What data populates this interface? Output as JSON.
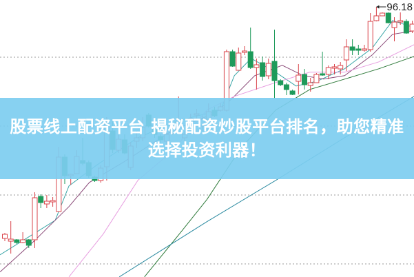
{
  "banner": {
    "title": "股票线上配资平台 揭秘配资炒股平台排名，助您精准选择投资利器！",
    "background": "#7dcdf0"
  },
  "chart_data": {
    "type": "candlestick",
    "grid": true,
    "high_label": "96.18",
    "colors": {
      "up": "#d9434a",
      "down": "#1e9a5a",
      "grid": "#999999"
    },
    "candle_format": [
      "open",
      "high",
      "low",
      "close"
    ],
    "candles": [
      [
        62.58,
        63.38,
        62.18,
        63.18
      ],
      [
        62.18,
        65.08,
        60.38,
        62.48
      ],
      [
        62.38,
        62.48,
        61.78,
        61.98
      ],
      [
        61.98,
        63.48,
        61.88,
        62.38
      ],
      [
        62.38,
        62.48,
        61.18,
        61.58
      ],
      [
        62.38,
        69.28,
        61.18,
        68.48
      ],
      [
        68.68,
        68.98,
        66.98,
        67.78
      ],
      [
        67.58,
        68.88,
        66.98,
        67.98
      ],
      [
        67.88,
        68.58,
        67.18,
        68.08
      ],
      [
        66.48,
        75.88,
        66.48,
        74.38
      ],
      [
        74.38,
        74.78,
        70.48,
        71.68
      ],
      [
        71.68,
        71.98,
        70.38,
        71.88
      ],
      [
        71.98,
        75.38,
        71.98,
        74.48
      ],
      [
        73.88,
        77.18,
        73.18,
        73.48
      ],
      [
        73.58,
        73.88,
        71.38,
        71.68
      ],
      [
        71.48,
        71.68,
        70.78,
        70.98
      ],
      [
        70.98,
        73.18,
        70.68,
        72.78
      ],
      [
        72.98,
        80.18,
        70.98,
        79.18
      ],
      [
        78.18,
        79.68,
        74.98,
        75.48
      ],
      [
        75.38,
        77.68,
        74.98,
        76.98
      ],
      [
        76.88,
        77.68,
        74.78,
        74.98
      ],
      [
        72.88,
        76.58,
        72.48,
        75.98
      ],
      [
        76.68,
        78.18,
        75.68,
        77.18
      ],
      [
        77.18,
        80.18,
        76.68,
        78.68
      ],
      [
        80.48,
        80.78,
        78.68,
        78.88
      ],
      [
        78.58,
        79.18,
        77.18,
        77.68
      ],
      [
        77.38,
        77.68,
        76.48,
        76.88
      ],
      [
        76.68,
        78.18,
        76.18,
        77.68
      ],
      [
        77.88,
        79.38,
        77.58,
        78.88
      ],
      [
        79.18,
        83.18,
        78.68,
        79.58
      ],
      [
        77.18,
        78.18,
        76.68,
        77.68
      ],
      [
        79.48,
        80.68,
        78.68,
        79.98
      ],
      [
        80.48,
        81.38,
        79.98,
        80.68
      ],
      [
        78.88,
        80.38,
        78.18,
        79.88
      ],
      [
        79.88,
        82.18,
        79.68,
        80.98
      ],
      [
        81.18,
        81.68,
        80.18,
        80.38
      ],
      [
        81.18,
        82.18,
        80.98,
        81.68
      ],
      [
        81.18,
        89.98,
        80.98,
        89.68
      ],
      [
        89.68,
        89.98,
        87.48,
        87.58
      ],
      [
        86.98,
        90.28,
        86.98,
        89.48
      ],
      [
        89.58,
        90.48,
        89.18,
        89.78
      ],
      [
        89.68,
        93.18,
        87.18,
        87.38
      ],
      [
        87.38,
        88.68,
        84.18,
        87.78
      ],
      [
        88.08,
        88.98,
        85.48,
        86.08
      ],
      [
        86.18,
        88.68,
        85.68,
        87.98
      ],
      [
        88.28,
        92.88,
        82.88,
        85.48
      ],
      [
        85.48,
        85.68,
        84.68,
        84.88
      ],
      [
        84.88,
        85.18,
        83.38,
        84.18
      ],
      [
        83.98,
        84.18,
        83.38,
        83.48
      ],
      [
        85.38,
        87.88,
        83.48,
        86.28
      ],
      [
        86.38,
        87.18,
        84.18,
        84.88
      ],
      [
        84.78,
        85.88,
        83.88,
        85.18
      ],
      [
        85.18,
        86.58,
        85.18,
        86.38
      ],
      [
        86.48,
        89.68,
        86.18,
        86.28
      ],
      [
        86.38,
        87.68,
        85.68,
        87.38
      ],
      [
        87.28,
        87.88,
        86.38,
        87.48
      ],
      [
        87.18,
        88.18,
        86.38,
        87.68
      ],
      [
        88.48,
        91.48,
        86.88,
        90.38
      ],
      [
        90.38,
        91.48,
        89.18,
        89.88
      ],
      [
        90.08,
        90.68,
        89.18,
        89.88
      ],
      [
        89.88,
        90.68,
        89.68,
        90.08
      ],
      [
        89.98,
        95.28,
        89.68,
        94.08
      ],
      [
        94.18,
        96.18,
        94.08,
        94.88
      ],
      [
        94.88,
        95.38,
        94.88,
        95.28
      ],
      [
        95.28,
        95.38,
        93.78,
        93.88
      ],
      [
        93.18,
        94.68,
        91.18,
        93.98
      ],
      [
        93.98,
        95.38,
        93.58,
        94.18
      ],
      [
        94.08,
        94.38,
        92.28,
        92.38
      ],
      [
        92.68,
        94.18,
        92.38,
        93.68
      ]
    ],
    "moving_averages": [
      {
        "color": "#3aa6a8",
        "points": [
          [
            -0.8,
            60.2
          ],
          [
            3.8,
            62.7
          ],
          [
            8.4,
            65.2
          ],
          [
            10.7,
            70.2
          ],
          [
            15.3,
            73.2
          ],
          [
            22.2,
            77.2
          ],
          [
            29.1,
            79.7
          ],
          [
            36,
            81.2
          ],
          [
            38.3,
            86.2
          ],
          [
            41.1,
            88.7
          ],
          [
            45.2,
            86.7
          ],
          [
            48.6,
            84.7
          ],
          [
            52.1,
            85.4
          ],
          [
            56.7,
            87.2
          ],
          [
            61.3,
            90.2
          ],
          [
            64.7,
            94.2
          ],
          [
            68.2,
            93.2
          ]
        ]
      },
      {
        "color": "#8a4a78",
        "points": [
          [
            -0.8,
            57.7
          ],
          [
            4.9,
            62.2
          ],
          [
            10.7,
            67.2
          ],
          [
            14.1,
            70.7
          ],
          [
            19.9,
            73.7
          ],
          [
            27.9,
            78.2
          ],
          [
            34.8,
            80.7
          ],
          [
            37.7,
            82.7
          ],
          [
            41.7,
            86.2
          ],
          [
            46.3,
            87.7
          ],
          [
            49.8,
            86.2
          ],
          [
            53.2,
            85.7
          ],
          [
            56.7,
            86.2
          ],
          [
            61.3,
            89.2
          ],
          [
            64.7,
            92.2
          ],
          [
            68.2,
            92.7
          ]
        ]
      },
      {
        "color": "#e79ee0",
        "points": [
          [
            10.7,
            57.0
          ],
          [
            16.4,
            63.2
          ],
          [
            22.2,
            71.0
          ],
          [
            27.9,
            75.2
          ],
          [
            33.7,
            81.2
          ],
          [
            38.3,
            83.2
          ],
          [
            45.2,
            85.2
          ],
          [
            50.9,
            86.7
          ],
          [
            56.7,
            86.7
          ],
          [
            62.4,
            88.2
          ],
          [
            68.3,
            90.7
          ]
        ]
      },
      {
        "color": "#2e7a3a",
        "points": [
          [
            23.3,
            57.0
          ],
          [
            29.1,
            63.2
          ],
          [
            33.7,
            68.2
          ],
          [
            39.4,
            75.7
          ],
          [
            45.2,
            81.2
          ],
          [
            50.9,
            84.2
          ],
          [
            56.7,
            85.7
          ],
          [
            62.4,
            87.2
          ],
          [
            68.3,
            89.0
          ]
        ]
      },
      {
        "color": "#2a8aa0",
        "points": [
          [
            19.1,
            57.0
          ],
          [
            33.7,
            65.0
          ],
          [
            45.2,
            71.0
          ],
          [
            56.7,
            77.2
          ],
          [
            68.3,
            83.2
          ]
        ]
      }
    ]
  }
}
